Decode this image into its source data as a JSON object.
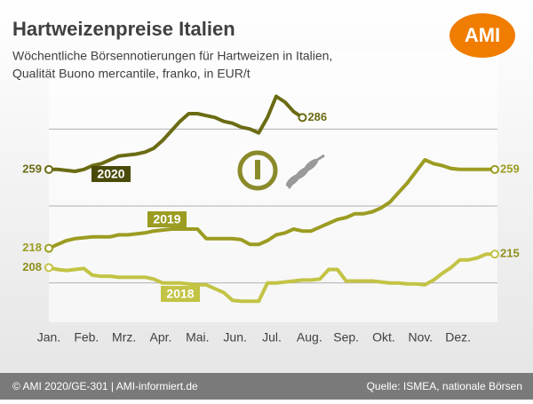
{
  "chart_data": {
    "type": "line",
    "title": "Hartweizenpreise Italien",
    "subtitle": [
      "Wöchentliche Börsennotierungen für Hartweizen in Italien,",
      "Qualität Buono mercantile, franko, in EUR/t"
    ],
    "logo": "AMI",
    "footer_left": "© AMI 2020/GE-301 | AMI-informiert.de",
    "footer_right": "Quelle: ISMEA, nationale Börsen",
    "x": [
      1,
      2,
      3,
      4,
      5,
      6,
      7,
      8,
      9,
      10,
      11,
      12,
      13,
      14,
      15,
      16,
      17,
      18,
      19,
      20,
      21,
      22,
      23,
      24,
      25,
      26,
      27,
      28,
      29,
      30,
      31,
      32,
      33,
      34,
      35,
      36,
      37,
      38,
      39,
      40,
      41,
      42,
      43,
      44,
      45,
      46,
      47,
      48,
      49,
      50,
      51,
      52
    ],
    "xlim": [
      1,
      52
    ],
    "xticks": [
      {
        "value": 1,
        "label": "Jan."
      },
      {
        "value": 5.3,
        "label": "Feb."
      },
      {
        "value": 9.6,
        "label": "Mrz."
      },
      {
        "value": 13.8,
        "label": "Apr."
      },
      {
        "value": 18,
        "label": "Mai."
      },
      {
        "value": 22.3,
        "label": "Jun."
      },
      {
        "value": 26.5,
        "label": "Jul."
      },
      {
        "value": 30.8,
        "label": "Aug."
      },
      {
        "value": 35,
        "label": "Sep."
      },
      {
        "value": 39.3,
        "label": "Okt."
      },
      {
        "value": 43.5,
        "label": "Nov."
      },
      {
        "value": 47.8,
        "label": "Dez."
      }
    ],
    "ylim": [
      180,
      318
    ],
    "yticks": [
      200,
      240,
      280
    ],
    "grid": true,
    "series": [
      {
        "name": "2020",
        "color": "#6b6b14",
        "values": [
          259,
          259,
          258.5,
          258,
          259,
          261,
          262,
          264,
          266,
          266.5,
          267,
          268,
          270,
          274,
          279,
          284,
          288,
          288,
          287,
          286,
          284,
          283,
          281,
          280,
          278,
          286,
          297,
          294,
          289,
          286,
          null,
          null,
          null,
          null,
          null,
          null,
          null,
          null,
          null,
          null,
          null,
          null,
          null,
          null,
          null,
          null,
          null,
          null,
          null,
          null,
          null,
          null
        ]
      },
      {
        "name": "2019",
        "color": "#9c9c22",
        "values": [
          218,
          220,
          222,
          223,
          223.5,
          224,
          224,
          224,
          225,
          225,
          225.5,
          226,
          227,
          227.5,
          228,
          228,
          228,
          228,
          223,
          223,
          223,
          223,
          222.5,
          220,
          220,
          222,
          225,
          226,
          228,
          227,
          227,
          229,
          231,
          233,
          234,
          236,
          236,
          237,
          239,
          242,
          247,
          252,
          258,
          264,
          262,
          261,
          259.5,
          259,
          259,
          259,
          259,
          259
        ]
      },
      {
        "name": "2018",
        "color": "#c3c345",
        "values": [
          208,
          207,
          206.5,
          207,
          207.5,
          204,
          203.5,
          203.5,
          203,
          203,
          203,
          203,
          202,
          200,
          200,
          200,
          199.5,
          199,
          199,
          197,
          195,
          191,
          190.5,
          190.5,
          190.5,
          200,
          200,
          200.5,
          201,
          201.5,
          201.5,
          202,
          207,
          207,
          201,
          201,
          201,
          201,
          200.5,
          200,
          200,
          199.5,
          199.5,
          199,
          201.5,
          205,
          208,
          212,
          212,
          213,
          215,
          215
        ]
      }
    ]
  }
}
